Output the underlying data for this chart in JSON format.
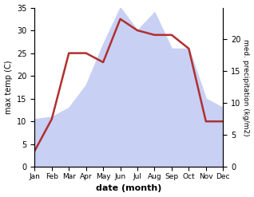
{
  "months": [
    "Jan",
    "Feb",
    "Mar",
    "Apr",
    "May",
    "Jun",
    "Jul",
    "Aug",
    "Sep",
    "Oct",
    "Nov",
    "Dec"
  ],
  "temperature": [
    3.5,
    10.5,
    25.0,
    25.0,
    23.0,
    32.5,
    30.0,
    29.0,
    29.0,
    26.0,
    10.0,
    10.0
  ],
  "precipitation": [
    10.5,
    11.0,
    13.0,
    18.0,
    27.0,
    35.0,
    30.0,
    34.0,
    26.0,
    26.0,
    15.0,
    13.0
  ],
  "temp_color": "#b03030",
  "precip_fill_color": "#c8d0f4",
  "temp_ylim": [
    0,
    35
  ],
  "precip_ylim": [
    0,
    25
  ],
  "temp_yticks": [
    0,
    5,
    10,
    15,
    20,
    25,
    30,
    35
  ],
  "precip_yticks": [
    0,
    5,
    10,
    15,
    20
  ],
  "precip_scale_factor": 1.4,
  "xlabel": "date (month)",
  "ylabel_left": "max temp (C)",
  "ylabel_right": "med. precipitation (kg/m2)",
  "background_color": "#ffffff"
}
